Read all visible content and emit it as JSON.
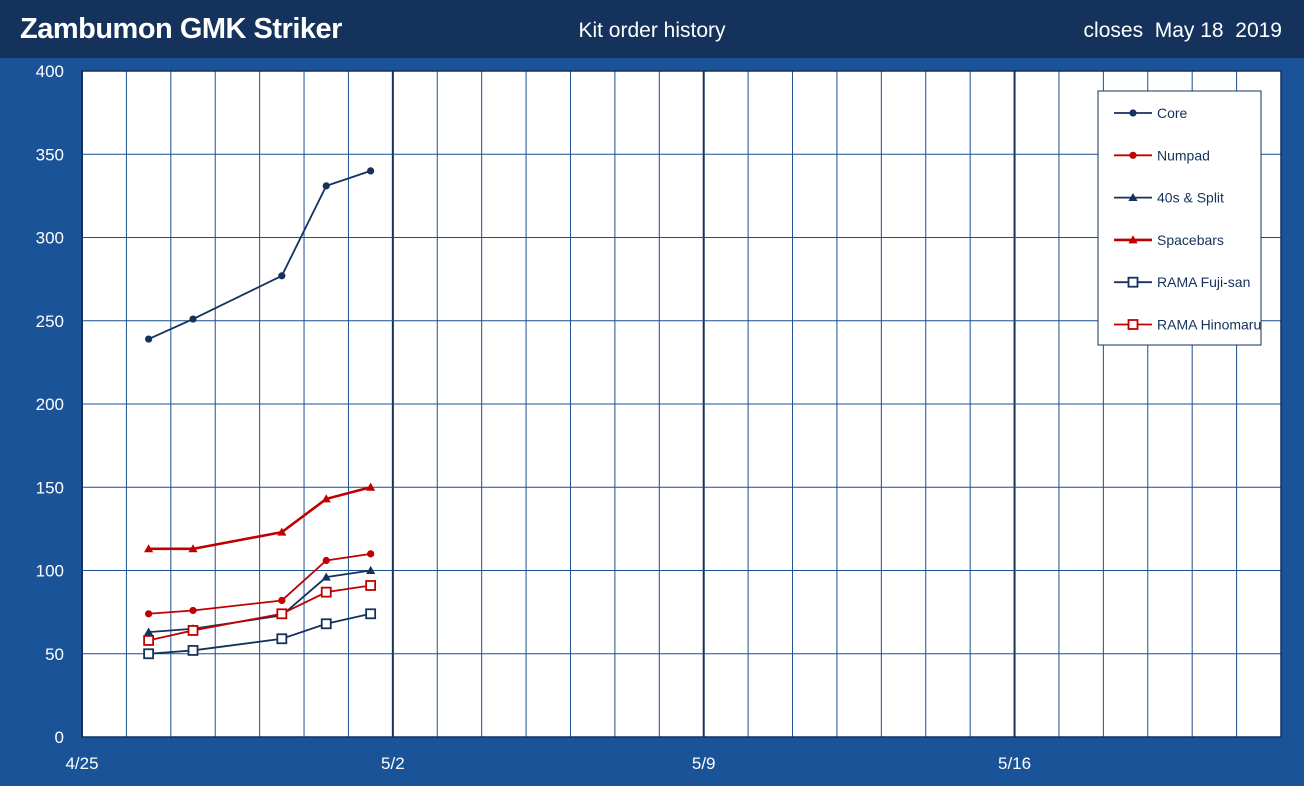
{
  "header": {
    "title": "Zambumon GMK Striker",
    "subtitle": "Kit order history",
    "closes_text": "closes  May 18  2019"
  },
  "colors": {
    "background": "#1a5398",
    "header": "#14325c",
    "plot_bg": "#ffffff",
    "grid": "#1a4f8f",
    "navy": "#14325c",
    "red": "#c00000"
  },
  "chart_data": {
    "type": "line",
    "title": "Kit order history",
    "xlabel": "",
    "ylabel": "",
    "x_ticks": [
      "4/25",
      "5/2",
      "5/9",
      "5/16"
    ],
    "y_ticks": [
      0,
      50,
      100,
      150,
      200,
      250,
      300,
      350,
      400
    ],
    "ylim": [
      0,
      400
    ],
    "xlim": [
      "2019-04-25",
      "2019-05-22"
    ],
    "grid": true,
    "legend_position": "top-right",
    "x": [
      "2019-04-26 12:00",
      "2019-04-27 12:00",
      "2019-04-29 12:00",
      "2019-04-30 12:00",
      "2019-05-01 12:00"
    ],
    "series": [
      {
        "name": "Core",
        "color": "#14325c",
        "marker": "dot",
        "values": [
          239,
          251,
          277,
          331,
          340
        ]
      },
      {
        "name": "Numpad",
        "color": "#c00000",
        "marker": "dot",
        "values": [
          74,
          76,
          82,
          106,
          110
        ]
      },
      {
        "name": "40s & Split",
        "color": "#14325c",
        "marker": "triangle",
        "values": [
          63,
          65,
          73,
          96,
          100
        ]
      },
      {
        "name": "Spacebars",
        "color": "#c00000",
        "marker": "triangle",
        "values": [
          113,
          113,
          123,
          143,
          150
        ]
      },
      {
        "name": "RAMA Fuji-san",
        "color": "#14325c",
        "marker": "square",
        "values": [
          50,
          52,
          59,
          68,
          74
        ]
      },
      {
        "name": "RAMA Hinomaru",
        "color": "#c00000",
        "marker": "square",
        "values": [
          58,
          64,
          74,
          87,
          91
        ]
      }
    ]
  }
}
